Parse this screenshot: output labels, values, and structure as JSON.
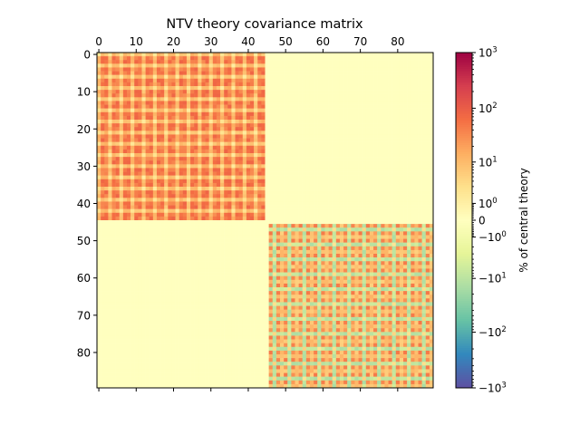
{
  "chart_data": {
    "type": "heatmap",
    "title": "NTV  theory covariance matrix",
    "xlabel": "",
    "ylabel": "",
    "matrix_size": 90,
    "x_ticks": [
      0,
      10,
      20,
      30,
      40,
      50,
      60,
      70,
      80
    ],
    "y_ticks": [
      0,
      10,
      20,
      30,
      40,
      50,
      60,
      70,
      80
    ],
    "x_axis_position": "top",
    "xlim": [
      -0.5,
      89.5
    ],
    "ylim": [
      89.5,
      -0.5
    ],
    "grid": false,
    "blocks": [
      {
        "name": "block-1",
        "rows": [
          0,
          44
        ],
        "cols": [
          0,
          44
        ],
        "typical_value": "~10^1 to 10^2 (positive)",
        "pattern": "bright spots every ~3 entries along rows and columns"
      },
      {
        "name": "block-2",
        "rows": [
          46,
          89
        ],
        "cols": [
          46,
          89
        ],
        "typical_value": "~10^1 (positive), with negative stripes (~-10^1)",
        "pattern": "blue grid lines every ~3 rows and columns"
      },
      {
        "name": "off-diagonal",
        "value": 0
      }
    ],
    "colorbar": {
      "label": "% of central theory",
      "colormap": "Spectral_r",
      "scale": "symlog",
      "linthresh": 1,
      "range": [
        -1000,
        1000
      ],
      "ticks": [
        {
          "value": 1000,
          "label": "10^3"
        },
        {
          "value": 100,
          "label": "10^2"
        },
        {
          "value": 10,
          "label": "10^1"
        },
        {
          "value": 1,
          "label": "10^0"
        },
        {
          "value": 0,
          "label": "0"
        },
        {
          "value": -1,
          "label": "-10^0"
        },
        {
          "value": -10,
          "label": "-10^1"
        },
        {
          "value": -100,
          "label": "-10^2"
        },
        {
          "value": -1000,
          "label": "-10^3"
        }
      ]
    }
  }
}
